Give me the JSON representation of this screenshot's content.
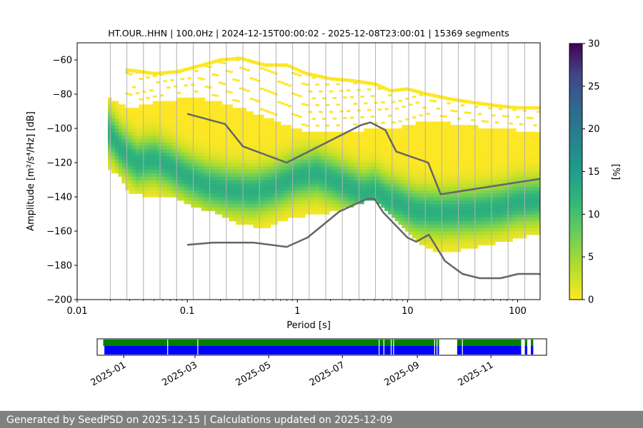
{
  "footer_text": "Generated by SeedPSD on 2025-12-15 | Calculations updated on 2025-12-09",
  "chart_data": [
    {
      "type": "heatmap",
      "title": "HT.OUR..HHN | 100.0Hz | 2024-12-15T00:00:02 - 2025-12-08T23:00:01 | 15369 segments",
      "xlabel": "Period [s]",
      "ylabel": "Amplitude [m²/s⁴/Hz] [dB]",
      "x_scale": "log",
      "xlim": [
        0.01,
        160
      ],
      "ylim": [
        -200,
        -50
      ],
      "x_ticks": [
        0.01,
        0.1,
        1,
        10,
        100
      ],
      "x_tick_labels": [
        "0.01",
        "0.1",
        "1",
        "10",
        "100"
      ],
      "y_ticks": [
        -200,
        -180,
        -160,
        -140,
        -120,
        -100,
        -80,
        -60
      ],
      "grid": "vertical lines at octave-spaced periods",
      "colorbar": {
        "label": "[%]",
        "range": [
          0,
          30
        ],
        "ticks": [
          0,
          5,
          10,
          15,
          20,
          25,
          30
        ],
        "colormap": "viridis_r"
      },
      "series": [
        {
          "kind": "high_noise_model",
          "color": "#666666",
          "x": [
            0.1,
            0.22,
            0.32,
            0.8,
            3.8,
            4.6,
            6.3,
            7.9,
            15.4,
            20,
            354.8
          ],
          "y": [
            -91.5,
            -97.4,
            -110.5,
            -120,
            -98,
            -96.5,
            -101,
            -113.5,
            -120,
            -138.5,
            -126
          ]
        },
        {
          "kind": "low_noise_model",
          "color": "#666666",
          "x": [
            0.1,
            0.17,
            0.4,
            0.8,
            1.24,
            2.4,
            4.3,
            5,
            6,
            10,
            12,
            15.6,
            21.9,
            31.6,
            45,
            70,
            101,
            154,
            328.9
          ],
          "y": [
            -168,
            -166.7,
            -166.7,
            -169.2,
            -163.7,
            -148.6,
            -141.1,
            -141.1,
            -149,
            -163.8,
            -166.2,
            -162.1,
            -177.5,
            -185,
            -187.5,
            -187.5,
            -185,
            -185,
            -187.5
          ]
        },
        {
          "kind": "mode_ridge",
          "x": [
            0.019,
            0.025,
            0.035,
            0.05,
            0.07,
            0.1,
            0.15,
            0.25,
            0.4,
            0.6,
            1.0,
            1.5,
            2.5,
            4.0,
            5.0,
            6.5,
            8,
            12,
            20,
            40,
            70,
            100,
            160
          ],
          "y": [
            -101,
            -112,
            -120,
            -118,
            -122,
            -128,
            -133,
            -136,
            -137,
            -134,
            -128,
            -126,
            -132,
            -138,
            -136,
            -141,
            -143,
            -148,
            -149,
            -148,
            -146,
            -143,
            -142
          ]
        },
        {
          "kind": "envelope_upper",
          "x": [
            0.019,
            0.03,
            0.05,
            0.08,
            0.12,
            0.2,
            0.3,
            0.5,
            0.8,
            1.2,
            2,
            4,
            8,
            15,
            30,
            60,
            100,
            160
          ],
          "y": [
            -83,
            -89,
            -86,
            -84,
            -83,
            -86,
            -89,
            -94,
            -99,
            -103,
            -103,
            -102,
            -101,
            -96,
            -99,
            -101,
            -102,
            -103
          ]
        },
        {
          "kind": "envelope_lower",
          "x": [
            0.019,
            0.025,
            0.03,
            0.05,
            0.08,
            0.12,
            0.2,
            0.3,
            0.5,
            0.8,
            1.2,
            2,
            3,
            4,
            5,
            7,
            10,
            15,
            20,
            30,
            50,
            80,
            100,
            160
          ],
          "y": [
            -122,
            -128,
            -137,
            -139,
            -140,
            -145,
            -149,
            -155,
            -157,
            -152,
            -150,
            -148,
            -145,
            -142,
            -140,
            -150,
            -160,
            -169,
            -172,
            -170,
            -167,
            -165,
            -163,
            -160
          ]
        },
        {
          "kind": "scatter_upper",
          "x": [
            0.03,
            0.05,
            0.08,
            0.12,
            0.2,
            0.3,
            0.5,
            0.8,
            1.2,
            2,
            3,
            5,
            7,
            10,
            15,
            25,
            40,
            70,
            100,
            160
          ],
          "y": [
            -66,
            -68,
            -67,
            -64,
            -60,
            -59,
            -63,
            -63,
            -68,
            -71,
            -72,
            -74,
            -78,
            -77,
            -80,
            -83,
            -85,
            -87,
            -88,
            -88
          ]
        }
      ]
    },
    {
      "type": "timeline",
      "x_tick_labels": [
        "2025-01",
        "2025-03",
        "2025-05",
        "2025-07",
        "2025-09",
        "2025-11"
      ],
      "x_ticks": [
        "2025-01-01",
        "2025-03-01",
        "2025-05-01",
        "2025-07-01",
        "2025-09-01",
        "2025-11-01"
      ],
      "xlim": [
        "2024-12-10",
        "2025-12-17"
      ],
      "green_color": "#008000",
      "blue_color": "#0000ff",
      "green_segments": [
        [
          "2024-12-15",
          "2025-09-19"
        ],
        [
          "2025-10-04",
          "2025-11-26"
        ],
        [
          "2025-11-29",
          "2025-12-01"
        ],
        [
          "2025-12-04",
          "2025-12-06"
        ]
      ],
      "blue_segments": [
        [
          "2024-12-16",
          "2025-09-19"
        ],
        [
          "2025-10-04",
          "2025-11-26"
        ],
        [
          "2025-11-29",
          "2025-12-01"
        ],
        [
          "2025-12-04",
          "2025-12-06"
        ]
      ],
      "gaps": [
        "2025-02-06",
        "2025-03-03",
        "2025-07-31",
        "2025-08-04",
        "2025-08-10",
        "2025-08-12",
        "2025-09-15",
        "2025-09-17",
        "2025-10-08"
      ]
    }
  ]
}
